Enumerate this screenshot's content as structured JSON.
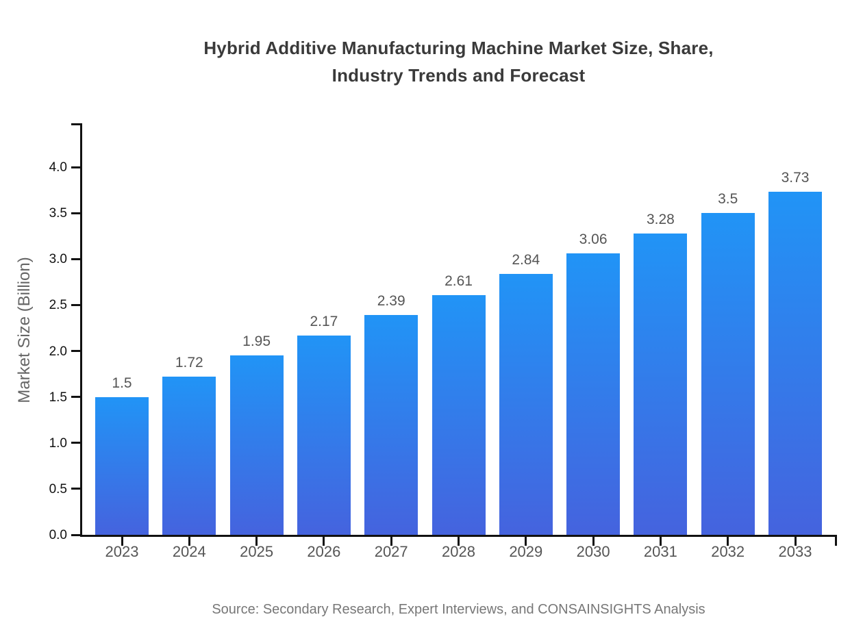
{
  "title": {
    "line1": "Hybrid Additive Manufacturing Machine Market Size, Share,",
    "line2": "Industry Trends and Forecast"
  },
  "source": "Source: Secondary Research, Expert Interviews, and CONSAINSIGHTS Analysis",
  "chart_data": {
    "type": "bar",
    "title": "Hybrid Additive Manufacturing Machine Market Size, Share, Industry Trends and Forecast",
    "categories": [
      "2023",
      "2024",
      "2025",
      "2026",
      "2027",
      "2028",
      "2029",
      "2030",
      "2031",
      "2032",
      "2033"
    ],
    "values": [
      1.5,
      1.72,
      1.95,
      2.17,
      2.39,
      2.61,
      2.84,
      3.06,
      3.28,
      3.5,
      3.73
    ],
    "value_labels": [
      "1.5",
      "1.72",
      "1.95",
      "2.17",
      "2.39",
      "2.61",
      "2.84",
      "3.06",
      "3.28",
      "3.5",
      "3.73"
    ],
    "xlabel": "",
    "ylabel": "Market Size (Billion)",
    "ylim": [
      0,
      4.48
    ],
    "ytick_values": [
      0,
      0.5,
      1,
      1.5,
      2,
      2.5,
      3,
      3.5,
      4
    ],
    "ytick_labels": [
      "0.0",
      "0.5",
      "1.0",
      "1.5",
      "2.0",
      "2.5",
      "3.0",
      "3.5",
      "4.0"
    ],
    "grid": false,
    "legend": false,
    "colors": {
      "bar_gradient_top": "#2194F6",
      "bar_gradient_bottom": "#4563DE",
      "axis": "#111111",
      "ytick_text": "#111111",
      "xtick_text": "#555555",
      "value_label_text": "#555555",
      "title_text": "#3a3a3a",
      "ylabel_text": "#666666",
      "source_text": "#777777"
    },
    "source": "Source: Secondary Research, Expert Interviews, and CONSAINSIGHTS Analysis"
  }
}
